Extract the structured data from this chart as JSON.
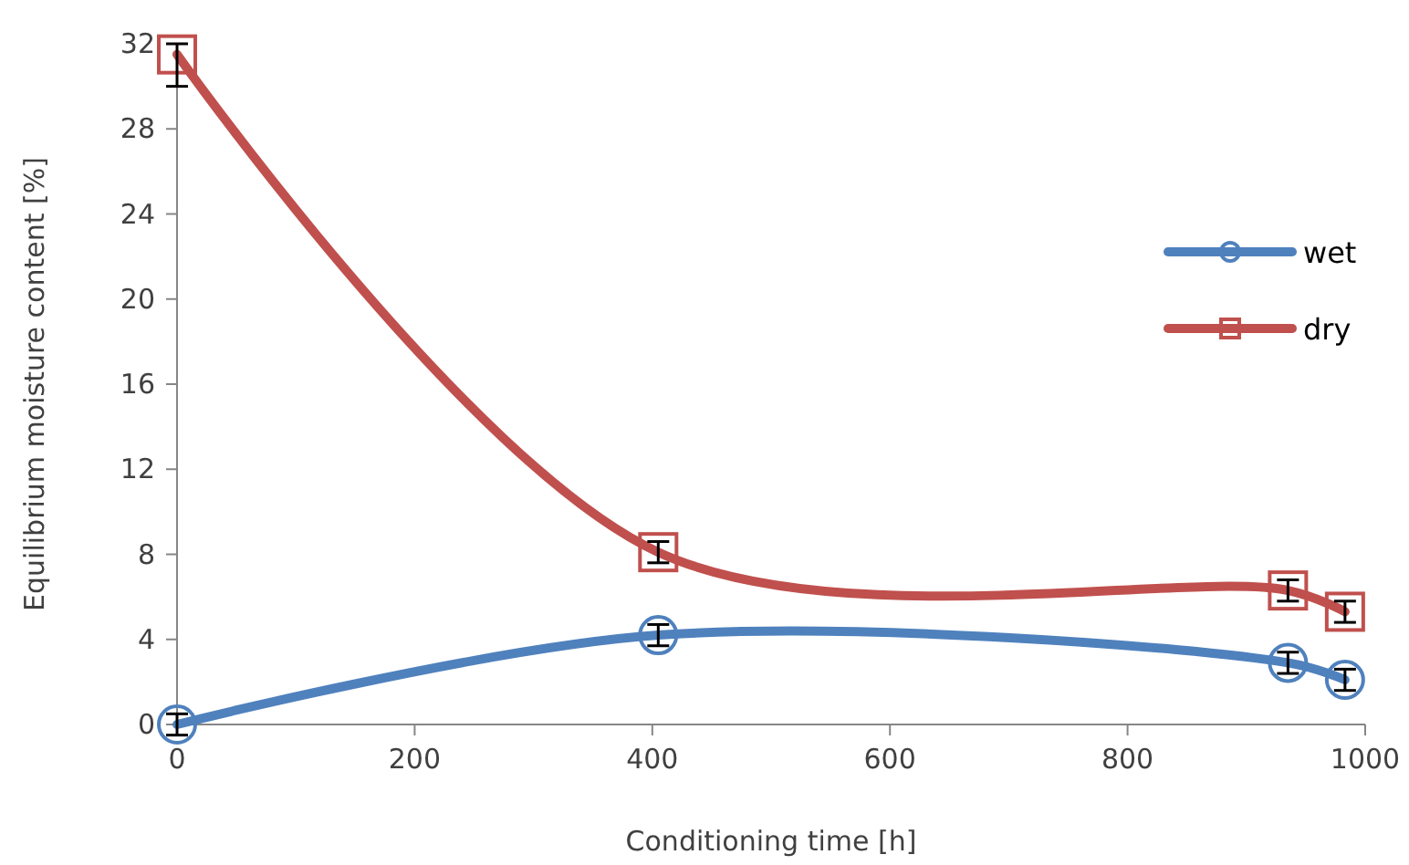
{
  "chart_data": {
    "type": "line",
    "xlabel": "Conditioning time [h]",
    "ylabel": "Equilibrium moisture content [%]",
    "x": [
      0,
      405,
      935,
      983
    ],
    "series": [
      {
        "name": "wet",
        "color": "#4f81bd",
        "marker": "circle",
        "values": [
          0,
          4.2,
          2.9,
          2.1
        ],
        "errors": [
          0.5,
          0.5,
          0.5,
          0.5
        ]
      },
      {
        "name": "dry",
        "color": "#c0504d",
        "marker": "square",
        "values": [
          31.5,
          8.1,
          6.3,
          5.3
        ],
        "errors": [
          [
            30,
            32
          ],
          0.5,
          0.5,
          0.5
        ]
      }
    ],
    "xlim": [
      0,
      1000
    ],
    "xticks": [
      0,
      200,
      400,
      600,
      800,
      1000
    ],
    "ylim": [
      0,
      32
    ],
    "yticks": [
      0,
      4,
      8,
      12,
      16,
      20,
      24,
      28,
      32
    ],
    "grid": false,
    "legend": "right",
    "line_style": "solid"
  }
}
